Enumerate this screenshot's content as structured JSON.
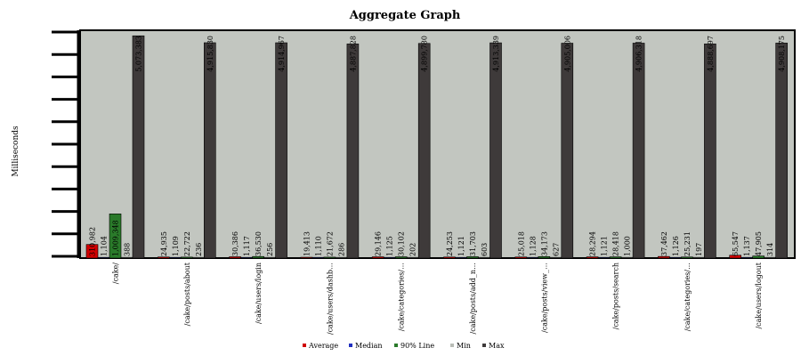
{
  "chart_data": {
    "type": "bar",
    "title": "Aggregate Graph",
    "xlabel": "",
    "ylabel": "Milliseconds",
    "ylim": [
      0,
      5200000
    ],
    "grid": false,
    "legend_position": "bottom",
    "categories": [
      "/cake/",
      "/cake/posts/about",
      "/cake/users/login",
      "/cake/users/dashb…",
      "/cake/categories/…",
      "/cake/posts/add_n…",
      "/cake/posts/view_…",
      "/cake/posts/search",
      "/cake/categories/…",
      "/cake/users/logout"
    ],
    "series": [
      {
        "name": "Average",
        "values": [
          310982,
          24935,
          30386,
          19413,
          29146,
          24253,
          25018,
          28294,
          37462,
          65547
        ],
        "labels": [
          "310,982",
          "24,935",
          "30,386",
          "19,413",
          "29,146",
          "24,253",
          "25,018",
          "28,294",
          "37,462",
          "65,547"
        ]
      },
      {
        "name": "Median",
        "values": [
          1104,
          1109,
          1117,
          1110,
          1125,
          1121,
          1128,
          1121,
          1126,
          1137
        ],
        "labels": [
          "1,104",
          "1,109",
          "1,117",
          "1,110",
          "1,125",
          "1,121",
          "1,128",
          "1,121",
          "1,126",
          "1,137"
        ]
      },
      {
        "name": "90% Line",
        "values": [
          1009348,
          22722,
          36530,
          21672,
          30102,
          31703,
          34173,
          28418,
          25231,
          47905
        ],
        "labels": [
          "1,009,348",
          "22,722",
          "36,530",
          "21,672",
          "30,102",
          "31,703",
          "34,173",
          "28,418",
          "25,231",
          "47,905"
        ]
      },
      {
        "name": "Min",
        "values": [
          388,
          236,
          256,
          286,
          202,
          603,
          627,
          1000,
          197,
          314
        ],
        "labels": [
          "388",
          "236",
          "256",
          "286",
          "202",
          "603",
          "627",
          "1,000",
          "197",
          "314"
        ]
      },
      {
        "name": "Max",
        "values": [
          5073383,
          4915830,
          4914967,
          4887828,
          4899780,
          4913339,
          4905006,
          4906318,
          4888697,
          4908175
        ],
        "labels": [
          "5,073,383",
          "4,915,830",
          "4,914,967",
          "4,887,828",
          "4,899,780",
          "4,913,339",
          "4,905,006",
          "4,906,318",
          "4,888,697",
          "4,908,175"
        ]
      }
    ],
    "colors": {
      "Average": "#d00000",
      "Median": "#2030c0",
      "90% Line": "#2a7a2a",
      "Min": "#b8bcb6",
      "Max": "#3e3a3a",
      "plot_background": "#c2c6c0"
    }
  }
}
